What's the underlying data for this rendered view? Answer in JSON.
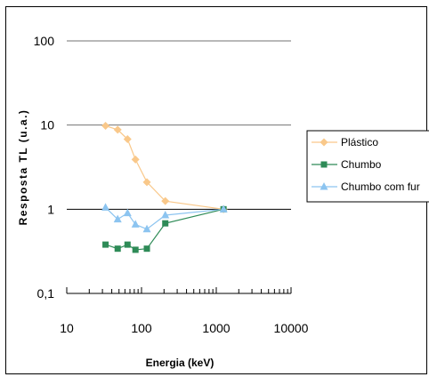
{
  "chart_data": {
    "type": "scatter",
    "xlabel": "Energia (keV)",
    "ylabel": "Resposta TL (u.a.)",
    "x_scale": "log",
    "y_scale": "log",
    "xlim": [
      10,
      10000
    ],
    "ylim": [
      0.1,
      100
    ],
    "x_ticks": [
      "10",
      "100",
      "1000",
      "10000"
    ],
    "y_ticks": [
      "0,1",
      "1",
      "10",
      "100"
    ],
    "y_gridlines": [
      1,
      10,
      100
    ],
    "legend_position": "right",
    "series": [
      {
        "name": "Plástico",
        "color": "#f9c88a",
        "marker": "diamond",
        "x": [
          33,
          48,
          65,
          83,
          118,
          208,
          1250
        ],
        "y": [
          9.8,
          8.8,
          6.8,
          3.9,
          2.1,
          1.25,
          1.0
        ]
      },
      {
        "name": "Chumbo",
        "color": "#2e8b57",
        "marker": "square",
        "x": [
          33,
          48,
          65,
          83,
          118,
          208,
          1250
        ],
        "y": [
          0.38,
          0.34,
          0.38,
          0.33,
          0.34,
          0.68,
          1.0
        ]
      },
      {
        "name": "Chumbo com fur",
        "color": "#8cc4f0",
        "marker": "triangle",
        "x": [
          33,
          48,
          65,
          83,
          118,
          208,
          1250
        ],
        "y": [
          1.05,
          0.76,
          0.9,
          0.66,
          0.58,
          0.85,
          1.0
        ]
      }
    ]
  }
}
